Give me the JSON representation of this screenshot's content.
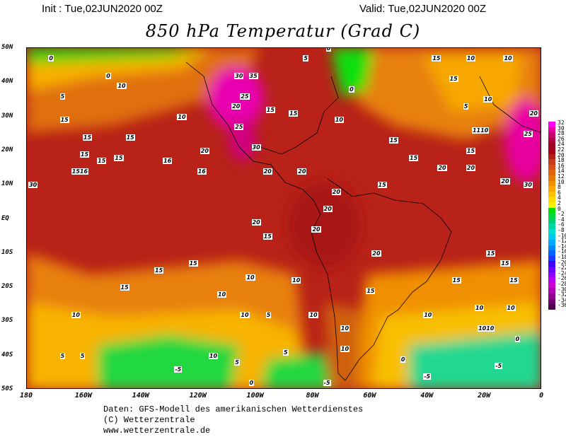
{
  "header": {
    "init": "Init : Tue,02JUN2020 00Z",
    "valid": "Valid: Tue,02JUN2020 00Z",
    "title": "850 hPa Temperatur (Grad C)"
  },
  "axes": {
    "latitudes": [
      "50N",
      "40N",
      "30N",
      "20N",
      "10N",
      "EQ",
      "10S",
      "20S",
      "30S",
      "40S",
      "50S"
    ],
    "longitudes": [
      "180",
      "160W",
      "140W",
      "120W",
      "100W",
      "80W",
      "60W",
      "40W",
      "20W",
      "0"
    ]
  },
  "colorbar": {
    "labels": [
      "32",
      "30",
      "28",
      "26",
      "24",
      "22",
      "20",
      "18",
      "16",
      "14",
      "12",
      "10",
      "8",
      "6",
      "4",
      "2",
      "0",
      "-2",
      "-4",
      "-6",
      "-8",
      "-10",
      "-12",
      "-14",
      "-16",
      "-18",
      "-20",
      "-22",
      "-24",
      "-26",
      "-28",
      "-30",
      "-32",
      "-34",
      "-36"
    ],
    "colors": [
      "#ff00ff",
      "#e8009c",
      "#c8006e",
      "#b0003c",
      "#a00024",
      "#a80018",
      "#b41e14",
      "#c83c18",
      "#d85018",
      "#e06410",
      "#e87808",
      "#f09000",
      "#f8a800",
      "#fcc000",
      "#ffd800",
      "#fff000",
      "#00e000",
      "#00d840",
      "#00d070",
      "#00d8a0",
      "#00e0d0",
      "#00c8f0",
      "#00a8ff",
      "#0088ff",
      "#0060ff",
      "#1838ff",
      "#4000ff",
      "#6800ff",
      "#9000ff",
      "#b800f0",
      "#d000d0",
      "#b000b0",
      "#900090",
      "#700070",
      "#500050"
    ]
  },
  "contour_labels": [
    {
      "t": "0",
      "lon": -171,
      "lat": 47
    },
    {
      "t": "0",
      "lon": -151,
      "lat": 42
    },
    {
      "t": "5",
      "lon": -167,
      "lat": 36
    },
    {
      "t": "10",
      "lon": -147,
      "lat": 39
    },
    {
      "t": "15",
      "lon": -167,
      "lat": 29
    },
    {
      "t": "15",
      "lon": -159,
      "lat": 24
    },
    {
      "t": "15",
      "lon": -144,
      "lat": 24
    },
    {
      "t": "10",
      "lon": -126,
      "lat": 30
    },
    {
      "t": "15",
      "lon": -160,
      "lat": 19
    },
    {
      "t": "15",
      "lon": -148,
      "lat": 18
    },
    {
      "t": "16",
      "lon": -131,
      "lat": 17
    },
    {
      "t": "15",
      "lon": -154,
      "lat": 17
    },
    {
      "t": "1516",
      "lon": -163,
      "lat": 14
    },
    {
      "t": "16",
      "lon": -119,
      "lat": 14
    },
    {
      "t": "20",
      "lon": -118,
      "lat": 20
    },
    {
      "t": "30",
      "lon": -178,
      "lat": 10
    },
    {
      "t": "30",
      "lon": -106,
      "lat": 42
    },
    {
      "t": "35",
      "lon": -101,
      "lat": 42
    },
    {
      "t": "25",
      "lon": -104,
      "lat": 36
    },
    {
      "t": "20",
      "lon": -107,
      "lat": 33
    },
    {
      "t": "25",
      "lon": -106,
      "lat": 27
    },
    {
      "t": "30",
      "lon": -100,
      "lat": 21
    },
    {
      "t": "20",
      "lon": -96,
      "lat": 14
    },
    {
      "t": "15",
      "lon": -95,
      "lat": 32
    },
    {
      "t": "0",
      "lon": -74,
      "lat": 50
    },
    {
      "t": "5",
      "lon": -82,
      "lat": 47
    },
    {
      "t": "15",
      "lon": -87,
      "lat": 31
    },
    {
      "t": "10",
      "lon": -71,
      "lat": 29
    },
    {
      "t": "0",
      "lon": -66,
      "lat": 38
    },
    {
      "t": "15",
      "lon": -52,
      "lat": 23
    },
    {
      "t": "15",
      "lon": -56,
      "lat": 10
    },
    {
      "t": "20",
      "lon": -84,
      "lat": 14
    },
    {
      "t": "20",
      "lon": -72,
      "lat": 8
    },
    {
      "t": "20",
      "lon": -75,
      "lat": 3
    },
    {
      "t": "20",
      "lon": -100,
      "lat": -1
    },
    {
      "t": "20",
      "lon": -79,
      "lat": -3
    },
    {
      "t": "15",
      "lon": -96,
      "lat": -5
    },
    {
      "t": "20",
      "lon": -58,
      "lat": -10
    },
    {
      "t": "15",
      "lon": -18,
      "lat": -10
    },
    {
      "t": "15",
      "lon": -13,
      "lat": -13
    },
    {
      "t": "15",
      "lon": -134,
      "lat": -15
    },
    {
      "t": "15",
      "lon": -122,
      "lat": -13
    },
    {
      "t": "15",
      "lon": -146,
      "lat": -20
    },
    {
      "t": "10",
      "lon": -112,
      "lat": -22
    },
    {
      "t": "10",
      "lon": -102,
      "lat": -17
    },
    {
      "t": "10",
      "lon": -86,
      "lat": -18
    },
    {
      "t": "15",
      "lon": -60,
      "lat": -21
    },
    {
      "t": "15",
      "lon": -30,
      "lat": -18
    },
    {
      "t": "15",
      "lon": -10,
      "lat": -18
    },
    {
      "t": "10",
      "lon": -22,
      "lat": -26
    },
    {
      "t": "10",
      "lon": -11,
      "lat": -26
    },
    {
      "t": "10",
      "lon": -40,
      "lat": -28
    },
    {
      "t": "1010",
      "lon": -21,
      "lat": -32
    },
    {
      "t": "5",
      "lon": -95,
      "lat": -28
    },
    {
      "t": "10",
      "lon": -104,
      "lat": -28
    },
    {
      "t": "10",
      "lon": -80,
      "lat": -28
    },
    {
      "t": "10",
      "lon": -69,
      "lat": -32
    },
    {
      "t": "10",
      "lon": -69,
      "lat": -38
    },
    {
      "t": "10",
      "lon": -163,
      "lat": -28
    },
    {
      "t": "5",
      "lon": -167,
      "lat": -40
    },
    {
      "t": "5",
      "lon": -160,
      "lat": -40
    },
    {
      "t": "10",
      "lon": -115,
      "lat": -40
    },
    {
      "t": "5",
      "lon": -106,
      "lat": -42
    },
    {
      "t": "5",
      "lon": -89,
      "lat": -39
    },
    {
      "t": "-5",
      "lon": -127,
      "lat": -44
    },
    {
      "t": "0",
      "lon": -101,
      "lat": -48
    },
    {
      "t": "-5",
      "lon": -75,
      "lat": -48
    },
    {
      "t": "0",
      "lon": -48,
      "lat": -41
    },
    {
      "t": "-5",
      "lon": -40,
      "lat": -46
    },
    {
      "t": "-5",
      "lon": -15,
      "lat": -43
    },
    {
      "t": "0",
      "lon": -8,
      "lat": -35
    },
    {
      "t": "20",
      "lon": -35,
      "lat": 15
    },
    {
      "t": "20",
      "lon": -25,
      "lat": 15
    },
    {
      "t": "20",
      "lon": -13,
      "lat": 11
    },
    {
      "t": "30",
      "lon": -5,
      "lat": 10
    },
    {
      "t": "25",
      "lon": -5,
      "lat": 25
    },
    {
      "t": "20",
      "lon": -3,
      "lat": 31
    },
    {
      "t": "15",
      "lon": -31,
      "lat": 41
    },
    {
      "t": "10",
      "lon": -19,
      "lat": 35
    },
    {
      "t": "5",
      "lon": -26,
      "lat": 33
    },
    {
      "t": "10",
      "lon": -12,
      "lat": 47
    },
    {
      "t": "15",
      "lon": -37,
      "lat": 47
    },
    {
      "t": "10",
      "lon": -25,
      "lat": 47
    },
    {
      "t": "1110",
      "lon": -23,
      "lat": 26
    },
    {
      "t": "15",
      "lon": -45,
      "lat": 18
    },
    {
      "t": "15",
      "lon": -25,
      "lat": 20
    }
  ],
  "footer": {
    "line1": "Daten: GFS-Modell des amerikanischen Wetterdienstes",
    "line2": "(C) Wetterzentrale",
    "line3": "www.wetterzentrale.de"
  }
}
